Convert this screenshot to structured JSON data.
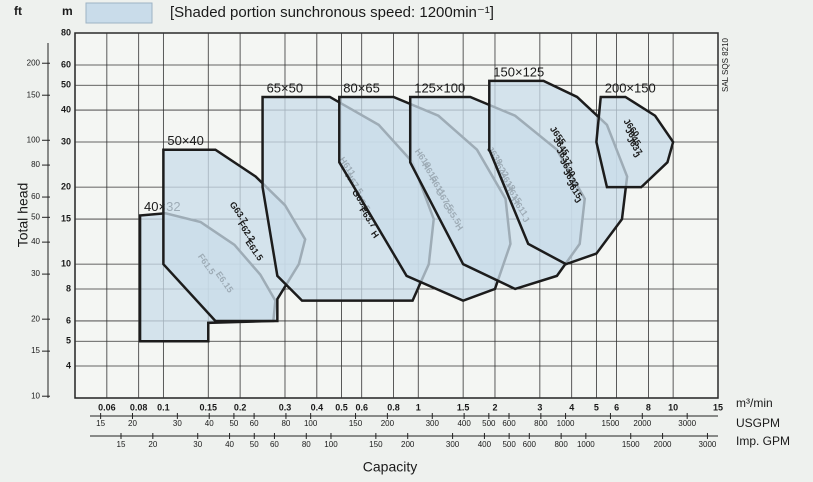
{
  "chart_data": {
    "type": "coverage",
    "header_units": [
      "ft",
      "m"
    ],
    "title": "[Shaded portion sunchronous speed: 1200min⁻¹]",
    "ylabel": "Total head",
    "xlabel": "Capacity",
    "xunits": [
      "m³/min",
      "USGPM",
      "Imp. GPM"
    ],
    "side_note": "SAL SQS 8210",
    "log": true,
    "grid": true,
    "fill": "#c9dcea",
    "stroke": "#1c1c1c",
    "xlim": [
      0.045,
      15
    ],
    "xticks": [
      0.06,
      0.08,
      0.1,
      0.15,
      0.2,
      0.3,
      0.4,
      0.5,
      0.6,
      0.8,
      1,
      1.5,
      2,
      3,
      4,
      5,
      6,
      8,
      10,
      15
    ],
    "x2lim": [
      11.9,
      3963
    ],
    "x2ticks": [
      15,
      20,
      30,
      40,
      50,
      60,
      80,
      100,
      150,
      200,
      300,
      400,
      500,
      600,
      800,
      1000,
      1500,
      2000,
      3000
    ],
    "x3lim": [
      9.9,
      3300
    ],
    "x3ticks": [
      15,
      20,
      30,
      40,
      50,
      60,
      80,
      100,
      150,
      200,
      300,
      400,
      500,
      600,
      800,
      1000,
      1500,
      2000,
      3000
    ],
    "ylim": [
      3,
      80
    ],
    "yticks": [
      4,
      5,
      6,
      8,
      10,
      15,
      20,
      30,
      40,
      50,
      60,
      80
    ],
    "y2lim": [
      9.84,
      262.5
    ],
    "y2ticks": [
      10,
      15,
      20,
      30,
      40,
      50,
      60,
      80,
      100,
      150,
      200
    ],
    "regions": [
      {
        "name": "40×32",
        "points": [
          [
            0.081,
            15.5
          ],
          [
            0.102,
            15.8
          ],
          [
            0.14,
            14.6
          ],
          [
            0.19,
            11.9
          ],
          [
            0.24,
            9.1
          ],
          [
            0.275,
            7.2
          ],
          [
            0.27,
            6.0
          ],
          [
            0.15,
            5.9
          ],
          [
            0.15,
            5.0
          ],
          [
            0.081,
            5.0
          ]
        ],
        "curves": [
          "F61.5",
          "E6.15"
        ]
      },
      {
        "name": "50×40",
        "points": [
          [
            0.1,
            28
          ],
          [
            0.16,
            28
          ],
          [
            0.23,
            22
          ],
          [
            0.3,
            17
          ],
          [
            0.36,
            12.5
          ],
          [
            0.34,
            10
          ],
          [
            0.28,
            7.3
          ],
          [
            0.28,
            6
          ],
          [
            0.16,
            6
          ],
          [
            0.1,
            10
          ]
        ],
        "curves": [
          "G63.7",
          "F62.2",
          "E61.5"
        ]
      },
      {
        "name": "65×50",
        "points": [
          [
            0.245,
            45
          ],
          [
            0.45,
            45
          ],
          [
            0.7,
            35
          ],
          [
            0.95,
            25
          ],
          [
            1.15,
            15
          ],
          [
            1.1,
            10
          ],
          [
            0.95,
            7.2
          ],
          [
            0.35,
            7.2
          ],
          [
            0.28,
            9
          ],
          [
            0.245,
            20
          ]
        ],
        "curves": [
          "H611",
          "H67.5",
          "G65.5",
          "F63.7",
          "H"
        ]
      },
      {
        "name": "80×65",
        "points": [
          [
            0.49,
            45
          ],
          [
            0.8,
            45
          ],
          [
            1.2,
            38
          ],
          [
            1.7,
            28
          ],
          [
            2.2,
            18
          ],
          [
            2.3,
            12
          ],
          [
            2.0,
            8
          ],
          [
            1.5,
            7.2
          ],
          [
            0.9,
            9
          ],
          [
            0.49,
            25
          ]
        ],
        "curves": [
          "H618",
          "H615",
          "H611",
          "G67.5",
          "G65.5",
          "H"
        ]
      },
      {
        "name": "125×100",
        "points": [
          [
            0.93,
            45
          ],
          [
            1.6,
            45
          ],
          [
            2.4,
            38
          ],
          [
            3.5,
            28
          ],
          [
            4.5,
            18
          ],
          [
            4.3,
            12
          ],
          [
            3.5,
            9
          ],
          [
            2.4,
            8
          ],
          [
            1.5,
            10
          ],
          [
            0.93,
            25
          ]
        ],
        "curves": [
          "J630",
          "J622",
          "H618",
          "H615",
          "H611",
          "J"
        ]
      },
      {
        "name": "150×125",
        "points": [
          [
            1.9,
            52
          ],
          [
            3.1,
            52
          ],
          [
            4.2,
            45
          ],
          [
            5.5,
            35
          ],
          [
            6.6,
            22
          ],
          [
            6.3,
            15
          ],
          [
            5.0,
            11
          ],
          [
            3.8,
            10
          ],
          [
            2.7,
            12
          ],
          [
            1.9,
            28
          ]
        ],
        "curves": [
          "J655",
          "J645",
          "J637",
          "J630",
          "J622",
          "J615",
          "J"
        ]
      },
      {
        "name": "200×150",
        "points": [
          [
            5.2,
            45
          ],
          [
            6.5,
            45
          ],
          [
            8.5,
            38
          ],
          [
            10,
            30
          ],
          [
            9.5,
            25
          ],
          [
            7.5,
            20
          ],
          [
            5.5,
            20
          ],
          [
            5.0,
            30
          ]
        ],
        "curves": [
          "J660",
          "J645",
          "J637",
          "J"
        ]
      }
    ]
  }
}
